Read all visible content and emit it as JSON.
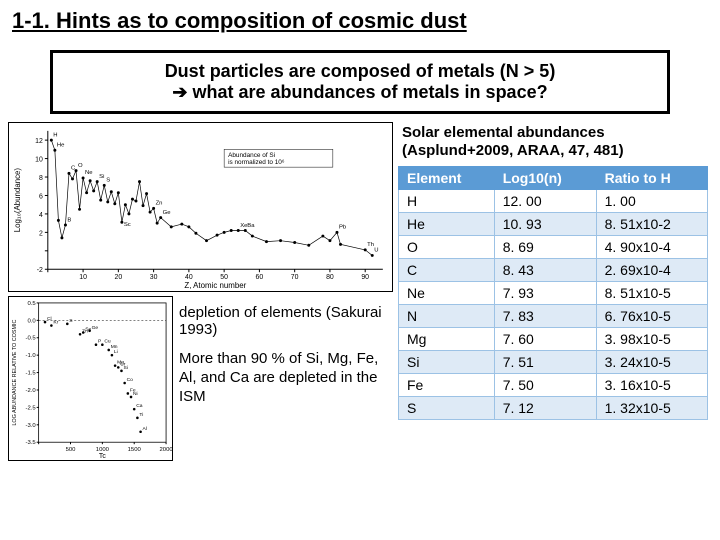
{
  "title": "1-1. Hints as to composition of cosmic dust",
  "box": {
    "line1": "Dust particles are composed of metals (N > 5)",
    "line2": "➔ what are abundances of metals in space?"
  },
  "chart1": {
    "type": "scatter-line",
    "xlabel": "Z, Atomic number",
    "ylabel": "Log₁₀(Abundance)",
    "xlim": [
      0,
      95
    ],
    "ylim": [
      -2,
      13
    ],
    "xtick_step": 10,
    "ytick_step": 2,
    "note": "Abundance of Si is normalized to 10⁶",
    "label_positions": [
      "H",
      "He",
      "B",
      "C",
      "O",
      "Ne",
      "Na",
      "Si",
      "S",
      "Cl",
      "K",
      "Ca",
      "Sc",
      "Cr",
      "Zn",
      "Ga",
      "Ge",
      "Co",
      "Nb",
      "Mo",
      "In",
      "Sn",
      "Sb",
      "Xe",
      "Ba",
      "Pt",
      "Pb",
      "Bi",
      "Th",
      "U"
    ],
    "points": [
      {
        "x": 1,
        "y": 12
      },
      {
        "x": 2,
        "y": 10.9
      },
      {
        "x": 3,
        "y": 3.3
      },
      {
        "x": 4,
        "y": 1.4
      },
      {
        "x": 5,
        "y": 2.8
      },
      {
        "x": 6,
        "y": 8.4
      },
      {
        "x": 7,
        "y": 7.8
      },
      {
        "x": 8,
        "y": 8.7
      },
      {
        "x": 9,
        "y": 4.5
      },
      {
        "x": 10,
        "y": 7.9
      },
      {
        "x": 11,
        "y": 6.3
      },
      {
        "x": 12,
        "y": 7.6
      },
      {
        "x": 13,
        "y": 6.5
      },
      {
        "x": 14,
        "y": 7.5
      },
      {
        "x": 15,
        "y": 5.5
      },
      {
        "x": 16,
        "y": 7.1
      },
      {
        "x": 17,
        "y": 5.3
      },
      {
        "x": 18,
        "y": 6.4
      },
      {
        "x": 19,
        "y": 5.1
      },
      {
        "x": 20,
        "y": 6.3
      },
      {
        "x": 21,
        "y": 3.1
      },
      {
        "x": 22,
        "y": 5.0
      },
      {
        "x": 23,
        "y": 4.0
      },
      {
        "x": 24,
        "y": 5.6
      },
      {
        "x": 25,
        "y": 5.4
      },
      {
        "x": 26,
        "y": 7.5
      },
      {
        "x": 27,
        "y": 4.9
      },
      {
        "x": 28,
        "y": 6.2
      },
      {
        "x": 29,
        "y": 4.2
      },
      {
        "x": 30,
        "y": 4.6
      },
      {
        "x": 31,
        "y": 3.0
      },
      {
        "x": 32,
        "y": 3.6
      },
      {
        "x": 35,
        "y": 2.6
      },
      {
        "x": 38,
        "y": 2.9
      },
      {
        "x": 40,
        "y": 2.6
      },
      {
        "x": 42,
        "y": 1.9
      },
      {
        "x": 45,
        "y": 1.1
      },
      {
        "x": 48,
        "y": 1.7
      },
      {
        "x": 50,
        "y": 2.0
      },
      {
        "x": 52,
        "y": 2.2
      },
      {
        "x": 54,
        "y": 2.2
      },
      {
        "x": 56,
        "y": 2.2
      },
      {
        "x": 58,
        "y": 1.6
      },
      {
        "x": 62,
        "y": 1.0
      },
      {
        "x": 66,
        "y": 1.1
      },
      {
        "x": 70,
        "y": 0.9
      },
      {
        "x": 74,
        "y": 0.6
      },
      {
        "x": 78,
        "y": 1.6
      },
      {
        "x": 80,
        "y": 1.1
      },
      {
        "x": 82,
        "y": 2.0
      },
      {
        "x": 83,
        "y": 0.7
      },
      {
        "x": 90,
        "y": 0.1
      },
      {
        "x": 92,
        "y": -0.5
      }
    ],
    "marker_color": "#000000",
    "line_color": "#000000",
    "background": "#ffffff"
  },
  "chart2": {
    "type": "scatter",
    "xlabel": "Tc",
    "ylabel": "LOG ABUNDANCE RELATIVE TO COSMIC",
    "xlim": [
      0,
      2000
    ],
    "ylim": [
      -3.5,
      0.5
    ],
    "xtick_step": 500,
    "ytick_step": 0.5,
    "points": [
      {
        "x": 100,
        "y": -0.05,
        "lbl": "Cl"
      },
      {
        "x": 200,
        "y": -0.15,
        "lbl": "Kr"
      },
      {
        "x": 450,
        "y": -0.1,
        "lbl": "S"
      },
      {
        "x": 650,
        "y": -0.4,
        "lbl": "Zn"
      },
      {
        "x": 700,
        "y": -0.35,
        "lbl": "Se"
      },
      {
        "x": 800,
        "y": -0.3,
        "lbl": "Ge"
      },
      {
        "x": 900,
        "y": -0.7,
        "lbl": "P"
      },
      {
        "x": 1000,
        "y": -0.7,
        "lbl": "Cu"
      },
      {
        "x": 1100,
        "y": -0.85,
        "lbl": "Mn"
      },
      {
        "x": 1150,
        "y": -1.0,
        "lbl": "Li"
      },
      {
        "x": 1200,
        "y": -1.3,
        "lbl": "Mg"
      },
      {
        "x": 1250,
        "y": -1.35,
        "lbl": "Cr"
      },
      {
        "x": 1300,
        "y": -1.45,
        "lbl": "Si"
      },
      {
        "x": 1350,
        "y": -1.8,
        "lbl": "Co"
      },
      {
        "x": 1400,
        "y": -2.1,
        "lbl": "Fe"
      },
      {
        "x": 1450,
        "y": -2.2,
        "lbl": "Ni"
      },
      {
        "x": 1500,
        "y": -2.55,
        "lbl": "Ca"
      },
      {
        "x": 1550,
        "y": -2.8,
        "lbl": "Ti"
      },
      {
        "x": 1600,
        "y": -3.2,
        "lbl": "Al"
      }
    ],
    "marker_color": "#000000",
    "background": "#ffffff"
  },
  "depletion_text": "depletion of elements (Sakurai 1993)",
  "more_than_text": "More than 90 % of Si, Mg, Fe, Al, and Ca are depleted in the ISM",
  "solar_title": "Solar elemental abundances (Asplund+2009, ARAA, 47, 481)",
  "table": {
    "headers": [
      "Element",
      "Log10(n)",
      "Ratio to H"
    ],
    "header_bg": "#5b9bd5",
    "header_fg": "#ffffff",
    "row_alt_bg": "#deeaf6",
    "border_color": "#9cc2e5",
    "rows": [
      [
        "H",
        "12. 00",
        "1. 00"
      ],
      [
        "He",
        "10. 93",
        "8. 51x10-2"
      ],
      [
        "O",
        "8. 69",
        "4. 90x10-4"
      ],
      [
        "C",
        "8. 43",
        "2. 69x10-4"
      ],
      [
        "Ne",
        "7. 93",
        "8. 51x10-5"
      ],
      [
        "N",
        "7. 83",
        "6. 76x10-5"
      ],
      [
        "Mg",
        "7. 60",
        "3. 98x10-5"
      ],
      [
        "Si",
        "7. 51",
        "3. 24x10-5"
      ],
      [
        "Fe",
        "7. 50",
        "3. 16x10-5"
      ],
      [
        "S",
        "7. 12",
        "1. 32x10-5"
      ]
    ]
  }
}
